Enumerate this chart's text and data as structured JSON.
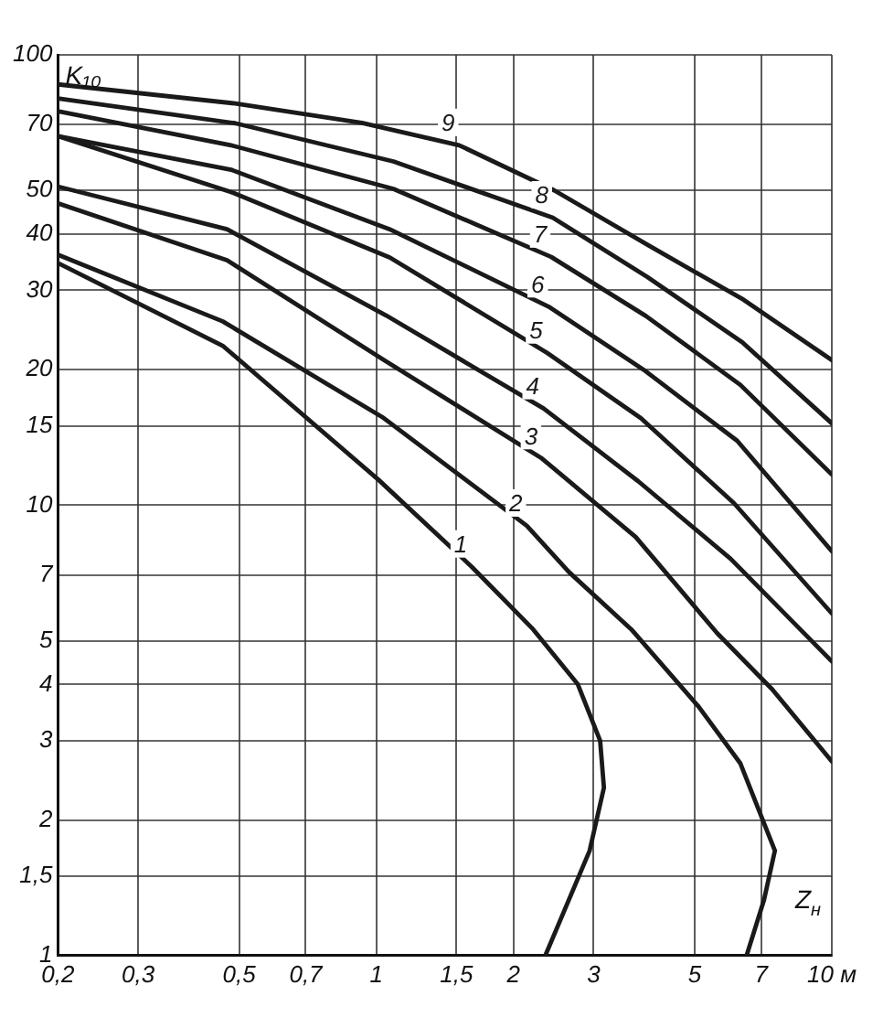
{
  "chart_data": {
    "type": "line",
    "xlabel": "Z$_{н}$",
    "ylabel": "K₁₀",
    "log": "xy",
    "grid": true,
    "legend": false,
    "marker": "none",
    "line_style": "solid",
    "xlim": [
      0.2,
      10
    ],
    "ylim": [
      1,
      100
    ],
    "xticks": [
      {
        "value": 0.2,
        "label": "0,2"
      },
      {
        "value": 0.3,
        "label": "0,3"
      },
      {
        "value": 0.5,
        "label": "0,5"
      },
      {
        "value": 0.7,
        "label": "0,7"
      },
      1,
      {
        "value": 1.5,
        "label": "1,5"
      },
      2,
      3,
      5,
      7,
      {
        "value": 10,
        "label": "10 м"
      }
    ],
    "yticks": [
      1,
      {
        "value": 1.5,
        "label": "1,5"
      },
      2,
      3,
      4,
      5,
      7,
      10,
      15,
      20,
      30,
      40,
      50,
      70,
      100
    ],
    "series": [
      {
        "name": "1",
        "color": "#1a1a1a",
        "x": [
          0.2,
          0.46,
          1.01,
          1.62,
          2.21,
          2.77,
          3.1,
          3.16,
          2.94,
          2.35
        ],
        "values": [
          34.5,
          22.6,
          11.4,
          7.3,
          5.3,
          4.0,
          3.0,
          2.36,
          1.71,
          1
        ]
      },
      {
        "name": "2",
        "color": "#1a1a1a",
        "x": [
          0.2,
          0.46,
          1.03,
          2.14,
          2.65,
          3.63,
          5.1,
          6.3,
          7.5,
          7.1,
          6.5
        ],
        "values": [
          36,
          25.6,
          15.7,
          9.0,
          7.1,
          5.3,
          3.57,
          2.67,
          1.71,
          1.33,
          1
        ]
      },
      {
        "name": "3",
        "color": "#1a1a1a",
        "x": [
          0.2,
          0.47,
          1.04,
          2.31,
          3.71,
          5.6,
          7.4,
          10
        ],
        "values": [
          46.8,
          35,
          21,
          12.7,
          8.5,
          5.2,
          3.9,
          2.7
        ]
      },
      {
        "name": "4",
        "color": "#1a1a1a",
        "x": [
          0.2,
          0.47,
          1.05,
          2.33,
          3.76,
          6.0,
          10
        ],
        "values": [
          51,
          41,
          26.4,
          16.4,
          11.3,
          7.6,
          4.5
        ]
      },
      {
        "name": "5",
        "color": "#1a1a1a",
        "x": [
          0.2,
          0.48,
          1.07,
          2.37,
          3.81,
          6.1,
          10
        ],
        "values": [
          66,
          49.6,
          35.5,
          21.8,
          15.6,
          10.1,
          5.75
        ]
      },
      {
        "name": "6",
        "color": "#1a1a1a",
        "x": [
          0.2,
          0.48,
          1.07,
          2.39,
          3.86,
          6.2,
          10
        ],
        "values": [
          66,
          55.6,
          41,
          27.6,
          20,
          13.9,
          7.9
        ]
      },
      {
        "name": "7",
        "color": "#1a1a1a",
        "x": [
          0.2,
          0.48,
          1.09,
          2.42,
          3.91,
          6.3,
          10
        ],
        "values": [
          75,
          63,
          50.4,
          35.6,
          26.3,
          18.5,
          11.7
        ]
      },
      {
        "name": "8",
        "color": "#1a1a1a",
        "x": [
          0.2,
          0.49,
          1.09,
          2.44,
          3.94,
          6.36,
          10
        ],
        "values": [
          80,
          70.5,
          58,
          43.5,
          32.1,
          23,
          15.2
        ]
      },
      {
        "name": "9",
        "color": "#1a1a1a",
        "x": [
          0.2,
          0.49,
          0.93,
          1.52,
          2.46,
          3.97,
          6.4,
          10
        ],
        "values": [
          86,
          78,
          70.6,
          63,
          50,
          37.7,
          28.6,
          21
        ]
      }
    ]
  }
}
